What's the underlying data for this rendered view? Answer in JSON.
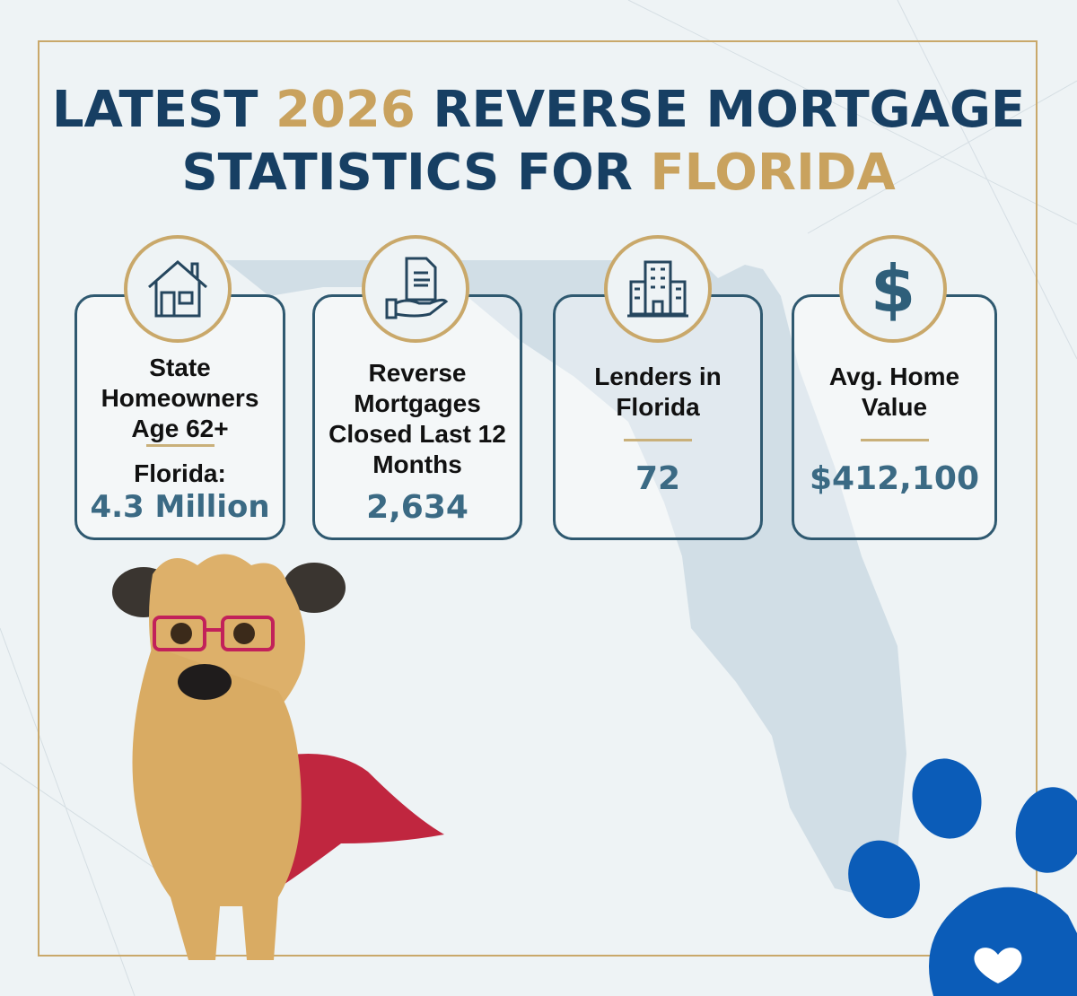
{
  "title": {
    "line1_a": "LATEST ",
    "line1_gold": "2026",
    "line1_b": " REVERSE MORTGAGE",
    "line2_a": "STATISTICS FOR ",
    "line2_gold": "FLORIDA"
  },
  "colors": {
    "navy": "#173f63",
    "gold": "#c9a25e",
    "value": "#3b6a84",
    "paw": "#0b5cb8"
  },
  "cards": [
    {
      "icon": "house-icon",
      "label": "State Homeowners Age 62+",
      "sublabel": "Florida:",
      "value": "4.3 Million"
    },
    {
      "icon": "document-hand-icon",
      "label": "Reverse Mortgages Closed Last 12 Months",
      "value": "2,634"
    },
    {
      "icon": "building-icon",
      "label": "Lenders in Florida",
      "value": "72"
    },
    {
      "icon": "dollar-icon",
      "label": "Avg. Home Value",
      "value": "$412,100"
    }
  ]
}
